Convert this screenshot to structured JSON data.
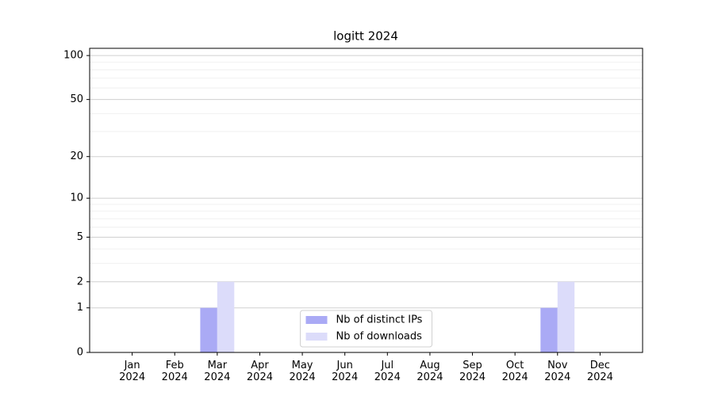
{
  "chart_data": {
    "type": "bar",
    "title": "logitt 2024",
    "categories": [
      "Jan 2024",
      "Feb 2024",
      "Mar 2024",
      "Apr 2024",
      "May 2024",
      "Jun 2024",
      "Jul 2024",
      "Aug 2024",
      "Sep 2024",
      "Oct 2024",
      "Nov 2024",
      "Dec 2024"
    ],
    "series": [
      {
        "name": "Nb of distinct IPs",
        "color": "#aaaaf5",
        "values": [
          0,
          0,
          1,
          0,
          0,
          0,
          0,
          0,
          0,
          0,
          1,
          0
        ]
      },
      {
        "name": "Nb of downloads",
        "color": "#dcdcfa",
        "values": [
          0,
          0,
          2,
          0,
          0,
          0,
          0,
          0,
          0,
          0,
          2,
          0
        ]
      }
    ],
    "yscale": "log1p",
    "ylim": [
      0,
      112
    ],
    "yticks": [
      0,
      1,
      2,
      5,
      10,
      20,
      50,
      100
    ],
    "minor_yticks": [
      3,
      4,
      6,
      7,
      8,
      9,
      30,
      40,
      60,
      70,
      80,
      90
    ],
    "grid": true,
    "legend": "lower center"
  }
}
